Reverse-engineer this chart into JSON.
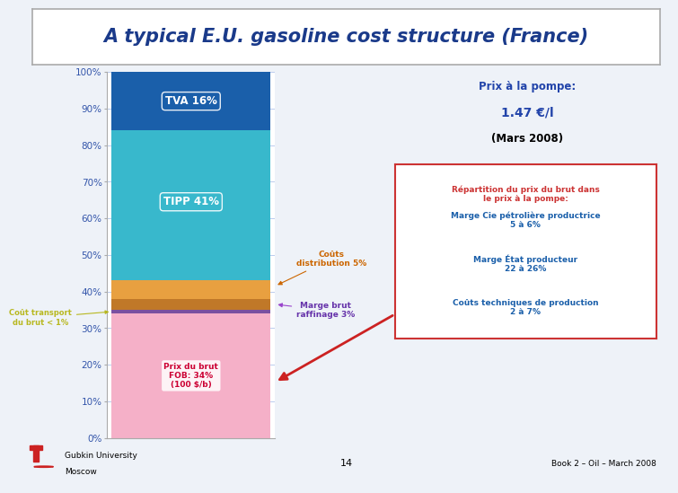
{
  "title": "A typical E.U. gasoline cost structure (France)",
  "title_fontsize": 15,
  "title_color": "#1a3a8a",
  "bg_color": "#eef2f8",
  "chart_bg": "#ffffff",
  "segment_values": [
    34,
    1,
    3,
    5,
    41,
    16
  ],
  "segment_colors": [
    "#f5b0c8",
    "#7a50a0",
    "#c07828",
    "#e8a040",
    "#38b8cc",
    "#1a5faa"
  ],
  "segment_labels_inside": [
    "Prix du brut\nFOB: 34%\n(100 $/b)",
    "",
    "",
    "",
    "TIPP 41%",
    "TVA 16%"
  ],
  "segment_text_colors_inside": [
    "#cc0033",
    "",
    "",
    "",
    "#ffffff",
    "#ffffff"
  ],
  "prix_pompe_text": "Prix à la pompe:",
  "prix_pompe_value": "1.47 €/l",
  "prix_pompe_date": "(Mars 2008)",
  "box_title": "Répartition du prix du brut dans\nle prix à la pompe:",
  "box_lines": [
    "Marge Cie pétrolière productrice\n5 à 6%",
    "Marge État producteur\n22 à 26%",
    "Coûts techniques de production\n2 à 7%"
  ],
  "label_transport": "Coût transport\ndu brut < 1%",
  "label_raffinage": "Marge brut\nraffinage 3%",
  "label_distribution": "Coûts\ndistribution 5%",
  "ytick_labels": [
    "0%",
    "10%",
    "20%",
    "30%",
    "40%",
    "50%",
    "60%",
    "70%",
    "80%",
    "90%",
    "100%"
  ],
  "footer_left1": "Gubkin University",
  "footer_left2": "Moscow",
  "footer_center": "14",
  "footer_right": "Book 2 – Oil – March 2008"
}
